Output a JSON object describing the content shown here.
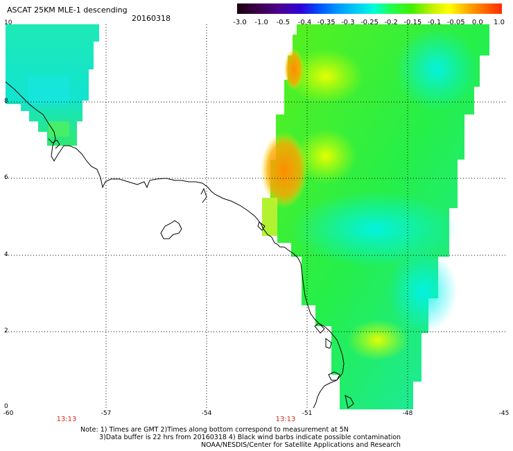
{
  "title": "ASCAT 25KM MLE-1 descending",
  "date": "20160318",
  "colorbar": {
    "labels": [
      "-3.0",
      "-1.0",
      "-0.5",
      "-0.4",
      "-0.35",
      "-0.3",
      "-0.25",
      "-0.2",
      "-0.15",
      "-0.1",
      "-0.05",
      "0.0",
      "1.0"
    ],
    "colors": [
      "#1a0010",
      "#4b0066",
      "#3000d8",
      "#0050ff",
      "#0098ff",
      "#00d2f5",
      "#00ffd8",
      "#20ff50",
      "#40f000",
      "#c8f000",
      "#ffff00",
      "#ffa000",
      "#ff2a00"
    ]
  },
  "axes": {
    "lat_labels": [
      "10",
      "8",
      "6",
      "4",
      "2",
      "0"
    ],
    "lon_labels": [
      "-60",
      "-57",
      "-54",
      "-51",
      "-48",
      "-45"
    ]
  },
  "times": [
    "13:13",
    "13:13"
  ],
  "notes": [
    "Note: 1) Times are GMT 2)Times along bottom correspond to measurement at 5N",
    "3)Data buffer is 22 hrs from 20160318 4) Black wind barbs indicate possible contamination",
    "NOAA/NESDIS/Center for Satellite Applications and Research"
  ]
}
